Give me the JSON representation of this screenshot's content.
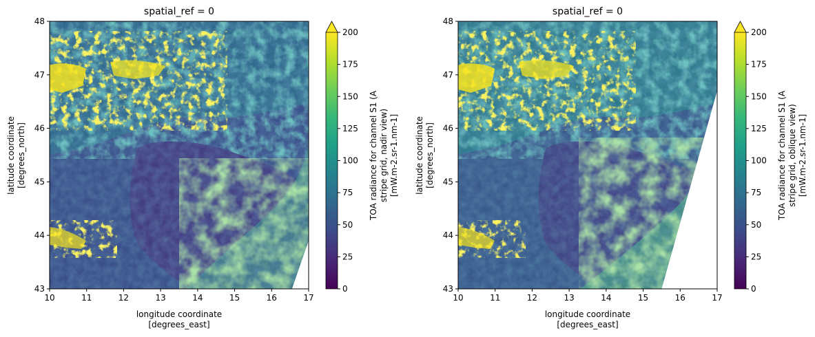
{
  "chart_data": [
    {
      "type": "heatmap",
      "title": "spatial_ref = 0",
      "xlabel": {
        "line1": "longitude coordinate",
        "line2": "[degrees_east]"
      },
      "ylabel": {
        "line1": "latitude coordinate",
        "line2": "[degrees_north]"
      },
      "xlim": [
        10,
        17
      ],
      "ylim": [
        43,
        48
      ],
      "xticks": [
        10,
        11,
        12,
        13,
        14,
        15,
        16,
        17
      ],
      "yticks": [
        43,
        44,
        45,
        46,
        47,
        48
      ],
      "colorbar": {
        "colormap": "viridis",
        "range": [
          0,
          200
        ],
        "extend": "max",
        "ticks": [
          0,
          25,
          50,
          75,
          100,
          125,
          150,
          175,
          200
        ],
        "label": {
          "line1": "TOA radiance for channel S1 (A",
          "line2": "stripe grid, nadir view)",
          "line3": "[mW.m-2.sr-1.nm-1]"
        }
      },
      "no_data_boundary_lon_at_lat": [
        [
          16.55,
          43
        ],
        [
          17,
          43.9
        ]
      ]
    },
    {
      "type": "heatmap",
      "title": "spatial_ref = 0",
      "xlabel": {
        "line1": "longitude coordinate",
        "line2": "[degrees_east]"
      },
      "ylabel": {
        "line1": "latitude coordinate",
        "line2": "[degrees_north]"
      },
      "xlim": [
        10,
        17
      ],
      "ylim": [
        43,
        48
      ],
      "xticks": [
        10,
        11,
        12,
        13,
        14,
        15,
        16,
        17
      ],
      "yticks": [
        43,
        44,
        45,
        46,
        47,
        48
      ],
      "colorbar": {
        "colormap": "viridis",
        "range": [
          0,
          200
        ],
        "extend": "max",
        "ticks": [
          0,
          25,
          50,
          75,
          100,
          125,
          150,
          175,
          200
        ],
        "label": {
          "line1": "TOA radiance for channel S1 (A",
          "line2": "stripe grid, oblique view)",
          "line3": "[mW.m-2.sr-1.nm-1]"
        }
      },
      "no_data_boundary_lon_at_lat": [
        [
          15.5,
          43
        ],
        [
          17,
          46.7
        ]
      ]
    }
  ],
  "colors": {
    "viridis": [
      "#440154",
      "#482878",
      "#3e4a89",
      "#31688e",
      "#26828e",
      "#1f9e89",
      "#35b779",
      "#6ece58",
      "#b5de2b",
      "#fde725"
    ],
    "land_low": "#3b518b",
    "lagoon_sea": "#423c81",
    "alpine_snow": "#f3e11e",
    "high_veg": "#2f7f8e",
    "coastal_haze": "#55b45f"
  }
}
